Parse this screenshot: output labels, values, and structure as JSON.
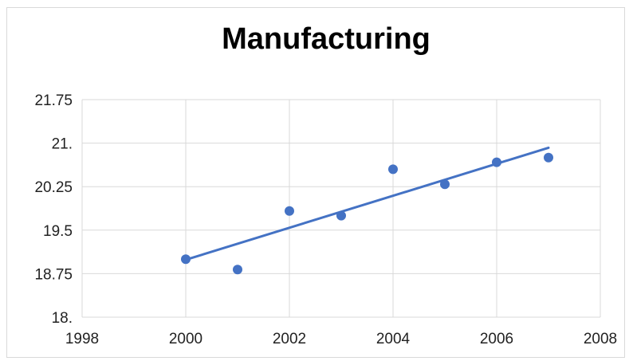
{
  "chart_data": {
    "type": "scatter",
    "title": "Manufacturing",
    "xlabel": "",
    "ylabel": "",
    "xlim": [
      1998,
      2008
    ],
    "ylim": [
      18,
      21.75
    ],
    "x_ticks": [
      1998,
      2000,
      2002,
      2004,
      2006,
      2008
    ],
    "y_ticks": [
      18,
      18.75,
      19.5,
      20.25,
      21,
      21.75
    ],
    "x_tick_labels": [
      "1998",
      "2000",
      "2002",
      "2004",
      "2006",
      "2008"
    ],
    "y_tick_labels": [
      "18.",
      "18.75",
      "19.5",
      "20.25",
      "21.",
      "21.75"
    ],
    "grid": true,
    "legend": "none",
    "series": [
      {
        "x": [
          2000,
          2001,
          2002,
          2003,
          2004,
          2005,
          2006,
          2007
        ],
        "y": [
          19.0,
          18.82,
          19.83,
          19.75,
          20.55,
          20.29,
          20.67,
          20.75
        ]
      }
    ],
    "trendline": {
      "x": [
        2000,
        2007
      ],
      "y": [
        18.99,
        20.92
      ]
    },
    "colors": {
      "marker": "#4472c4",
      "trendline": "#4472c4",
      "grid": "#d9d9d9"
    }
  }
}
